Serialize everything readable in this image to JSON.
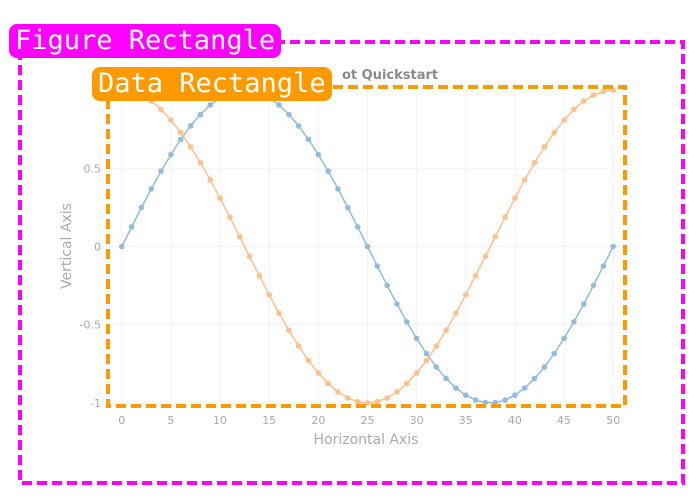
{
  "annotations": {
    "figure_label": "Figure Rectangle",
    "figure_color": "#ff00ff",
    "data_label": "Data Rectangle",
    "data_color": "#ff9900"
  },
  "chart_data": {
    "type": "scatter",
    "title": "ScottPlot Quickstart",
    "visible_title": "ot Quickstart",
    "xlabel": "Horizontal Axis",
    "ylabel": "Vertical Axis",
    "xlim": [
      -1.4,
      51.2
    ],
    "ylim": [
      -1.02,
      1.02
    ],
    "xticks": [
      0,
      5,
      10,
      15,
      20,
      25,
      30,
      35,
      40,
      45,
      50
    ],
    "yticks": [
      -1,
      -0.5,
      0,
      0.5
    ],
    "ytick_labels": [
      "-1",
      "-0.5",
      "0",
      "0.5"
    ],
    "grid": true,
    "legend": "none",
    "series": [
      {
        "color": "#8fbcdf",
        "x": [
          0,
          1,
          2,
          3,
          4,
          5,
          6,
          7,
          8,
          9,
          10,
          11,
          12,
          13,
          14,
          15,
          16,
          17,
          18,
          19,
          20,
          21,
          22,
          23,
          24,
          25,
          26,
          27,
          28,
          29,
          30,
          31,
          32,
          33,
          34,
          35,
          36,
          37,
          38,
          39,
          40,
          41,
          42,
          43,
          44,
          45,
          46,
          47,
          48,
          49,
          50
        ],
        "y": [
          0,
          0.125,
          0.249,
          0.368,
          0.482,
          0.588,
          0.685,
          0.771,
          0.844,
          0.905,
          0.951,
          0.982,
          0.998,
          0.998,
          0.982,
          0.951,
          0.905,
          0.844,
          0.771,
          0.685,
          0.588,
          0.482,
          0.368,
          0.249,
          0.125,
          0,
          -0.125,
          -0.249,
          -0.368,
          -0.482,
          -0.588,
          -0.685,
          -0.771,
          -0.844,
          -0.905,
          -0.951,
          -0.982,
          -0.998,
          -0.998,
          -0.982,
          -0.951,
          -0.905,
          -0.844,
          -0.771,
          -0.685,
          -0.588,
          -0.482,
          -0.368,
          -0.249,
          -0.125,
          0
        ]
      },
      {
        "color": "#ffc08a",
        "x": [
          0,
          1,
          2,
          3,
          4,
          5,
          6,
          7,
          8,
          9,
          10,
          11,
          12,
          13,
          14,
          15,
          16,
          17,
          18,
          19,
          20,
          21,
          22,
          23,
          24,
          25,
          26,
          27,
          28,
          29,
          30,
          31,
          32,
          33,
          34,
          35,
          36,
          37,
          38,
          39,
          40,
          41,
          42,
          43,
          44,
          45,
          46,
          47,
          48,
          49,
          50
        ],
        "y": [
          1,
          0.992,
          0.969,
          0.93,
          0.876,
          0.809,
          0.729,
          0.637,
          0.536,
          0.426,
          0.309,
          0.187,
          0.063,
          -0.063,
          -0.187,
          -0.309,
          -0.426,
          -0.536,
          -0.637,
          -0.729,
          -0.809,
          -0.876,
          -0.93,
          -0.969,
          -0.992,
          -1,
          -0.992,
          -0.969,
          -0.93,
          -0.876,
          -0.809,
          -0.729,
          -0.637,
          -0.536,
          -0.426,
          -0.309,
          -0.187,
          -0.063,
          0.063,
          0.187,
          0.309,
          0.426,
          0.536,
          0.637,
          0.729,
          0.809,
          0.876,
          0.93,
          0.969,
          0.992,
          1
        ]
      }
    ]
  }
}
